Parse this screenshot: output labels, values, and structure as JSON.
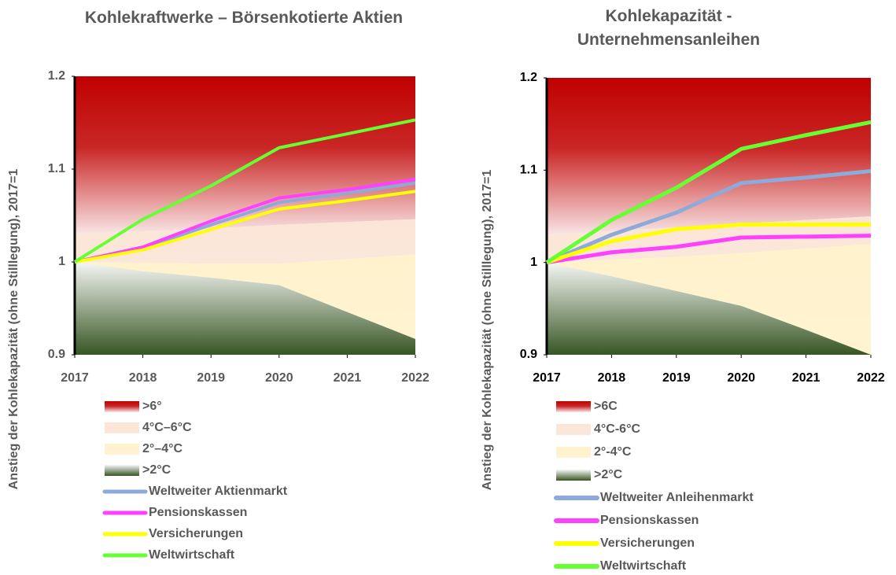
{
  "chart_data": [
    {
      "type": "line",
      "title": "Kohlekraftwerke – Börsenkotierte Aktien",
      "y_label": "Anstieg der Kohlekapazität (ohne Stilllegung), 2017=1",
      "x": [
        2017,
        2018,
        2019,
        2020,
        2021,
        2022
      ],
      "xlim": [
        2017,
        2022
      ],
      "xticks": [
        2017,
        2018,
        2019,
        2020,
        2021,
        2022
      ],
      "ylim": [
        0.9,
        1.2
      ],
      "yticks": [
        0.9,
        1,
        1.1,
        1.2
      ],
      "bands": [
        {
          "name": ">6°",
          "color": "#c00000",
          "values": [
            1.03,
            1.033,
            1.036,
            1.04,
            1.043,
            1.046
          ]
        },
        {
          "name": "4°C–6°C",
          "color": "#fbe5d6",
          "values": [
            1.0,
            0.999,
            0.998,
            0.998,
            1.003,
            1.008
          ]
        },
        {
          "name": "2°–4°C",
          "color": "#fff2cc",
          "values": [
            1.0,
            0.99,
            0.983,
            0.975,
            0.946,
            0.917
          ]
        },
        {
          "name": ">2°C",
          "color": "#375623"
        }
      ],
      "series": [
        {
          "name": "Weltweiter Aktienmarkt",
          "color": "#8eaadb",
          "values": [
            1.0,
            1.015,
            1.04,
            1.064,
            1.074,
            1.085
          ]
        },
        {
          "name": "Pensionskassen",
          "color": "#ff40ff",
          "values": [
            1.0,
            1.016,
            1.044,
            1.069,
            1.078,
            1.089
          ]
        },
        {
          "name": "Versicherungen",
          "color": "#ffff00",
          "values": [
            1.0,
            1.013,
            1.035,
            1.057,
            1.066,
            1.076
          ]
        },
        {
          "name": "Weltwirtschaft",
          "color": "#66ff33",
          "values": [
            1.0,
            1.046,
            1.082,
            1.123,
            1.138,
            1.153
          ]
        }
      ]
    },
    {
      "type": "line",
      "title": "Kohlekapazität - Unternehmensanleihen",
      "y_label": "Anstieg der Kohlekapazität (ohne Stilllegung), 2017=1",
      "x": [
        2017,
        2018,
        2019,
        2020,
        2021,
        2022
      ],
      "xlim": [
        2017,
        2022
      ],
      "xticks": [
        2017,
        2018,
        2019,
        2020,
        2021,
        2022
      ],
      "ylim": [
        0.9,
        1.2
      ],
      "yticks": [
        0.9,
        1,
        1.1,
        1.2
      ],
      "bands": [
        {
          "name": ">6C",
          "color": "#c00000",
          "values": [
            1.03,
            1.034,
            1.038,
            1.042,
            1.046,
            1.05
          ]
        },
        {
          "name": "4°C-6°C",
          "color": "#fbe5d6",
          "values": [
            1.0,
            1.003,
            1.006,
            1.01,
            1.015,
            1.02
          ]
        },
        {
          "name": "2°-4°C",
          "color": "#fff2cc",
          "values": [
            1.0,
            0.985,
            0.969,
            0.953,
            0.927,
            0.9
          ]
        },
        {
          "name": ">2°C",
          "color": "#375623"
        }
      ],
      "series": [
        {
          "name": "Weltweiter Anleihenmarkt",
          "color": "#8eaadb",
          "values": [
            1.0,
            1.03,
            1.054,
            1.086,
            1.092,
            1.099
          ]
        },
        {
          "name": "Pensionskassen",
          "color": "#ff40ff",
          "values": [
            1.0,
            1.011,
            1.017,
            1.027,
            1.028,
            1.029
          ]
        },
        {
          "name": "Versicherungen",
          "color": "#ffff00",
          "values": [
            1.0,
            1.023,
            1.036,
            1.041,
            1.041,
            1.041
          ]
        },
        {
          "name": "Weltwirtschaft",
          "color": "#66ff33",
          "values": [
            1.0,
            1.046,
            1.081,
            1.123,
            1.138,
            1.152
          ]
        }
      ]
    }
  ]
}
